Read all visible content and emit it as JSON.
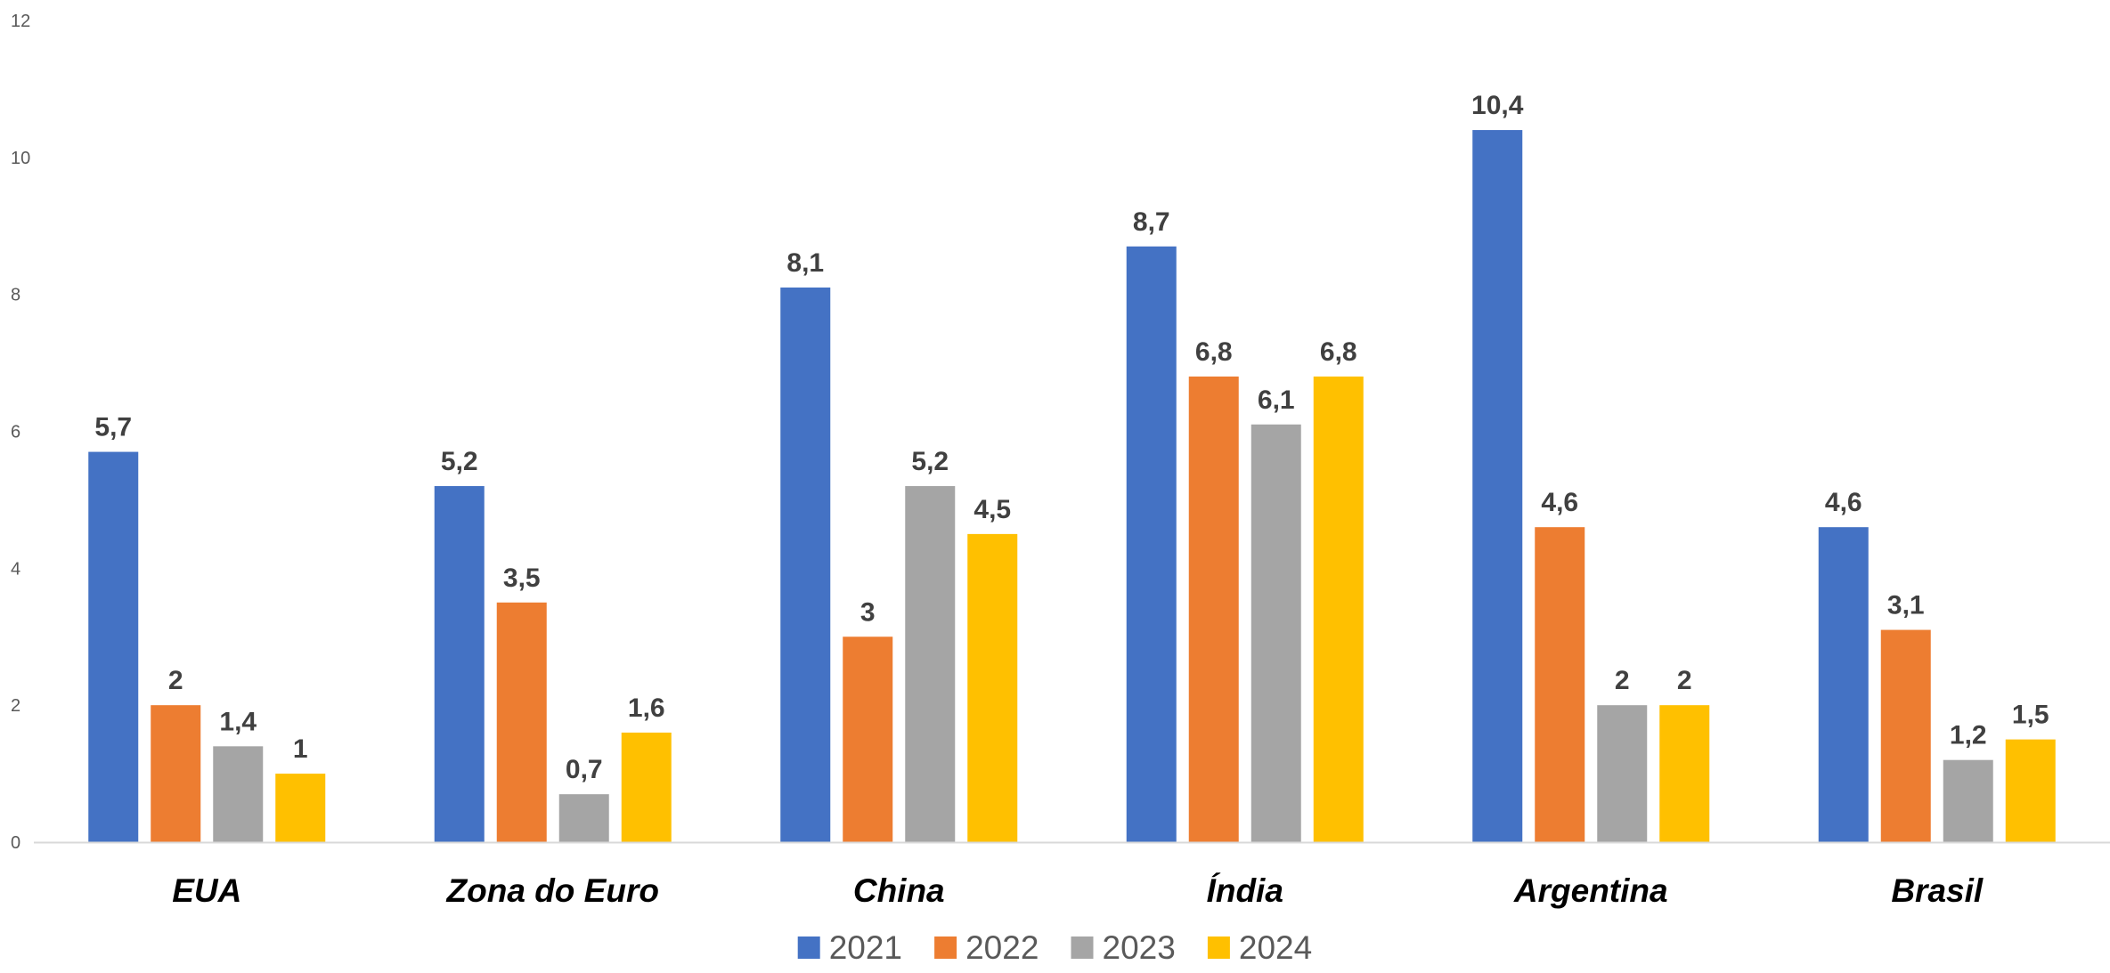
{
  "chart_data": {
    "type": "bar",
    "title": "",
    "xlabel": "",
    "ylabel": "",
    "ylim": [
      0,
      12
    ],
    "y_ticks": [
      0,
      2,
      4,
      6,
      8,
      10,
      12
    ],
    "y_tick_labels": [
      "0",
      "2",
      "4",
      "6",
      "8",
      "10",
      "12"
    ],
    "grid": false,
    "legend_position": "bottom",
    "categories": [
      "EUA",
      "Zona do Euro",
      "China",
      "Índia",
      "Argentina",
      "Brasil"
    ],
    "series": [
      {
        "name": "2021",
        "color": "#4472C4",
        "values": [
          5.7,
          5.2,
          8.1,
          8.7,
          10.4,
          4.6
        ],
        "labels": [
          "5,7",
          "5,2",
          "8,1",
          "8,7",
          "10,4",
          "4,6"
        ]
      },
      {
        "name": "2022",
        "color": "#ED7D31",
        "values": [
          2,
          3.5,
          3,
          6.8,
          4.6,
          3.1
        ],
        "labels": [
          "2",
          "3,5",
          "3",
          "6,8",
          "4,6",
          "3,1"
        ]
      },
      {
        "name": "2023",
        "color": "#A5A5A5",
        "values": [
          1.4,
          0.7,
          5.2,
          6.1,
          2,
          1.2
        ],
        "labels": [
          "1,4",
          "0,7",
          "5,2",
          "6,1",
          "2",
          "1,2"
        ]
      },
      {
        "name": "2024",
        "color": "#FFC000",
        "values": [
          1,
          1.6,
          4.5,
          6.8,
          2,
          1.5
        ],
        "labels": [
          "1",
          "1,6",
          "4,5",
          "6,8",
          "2",
          "1,5"
        ]
      }
    ]
  }
}
